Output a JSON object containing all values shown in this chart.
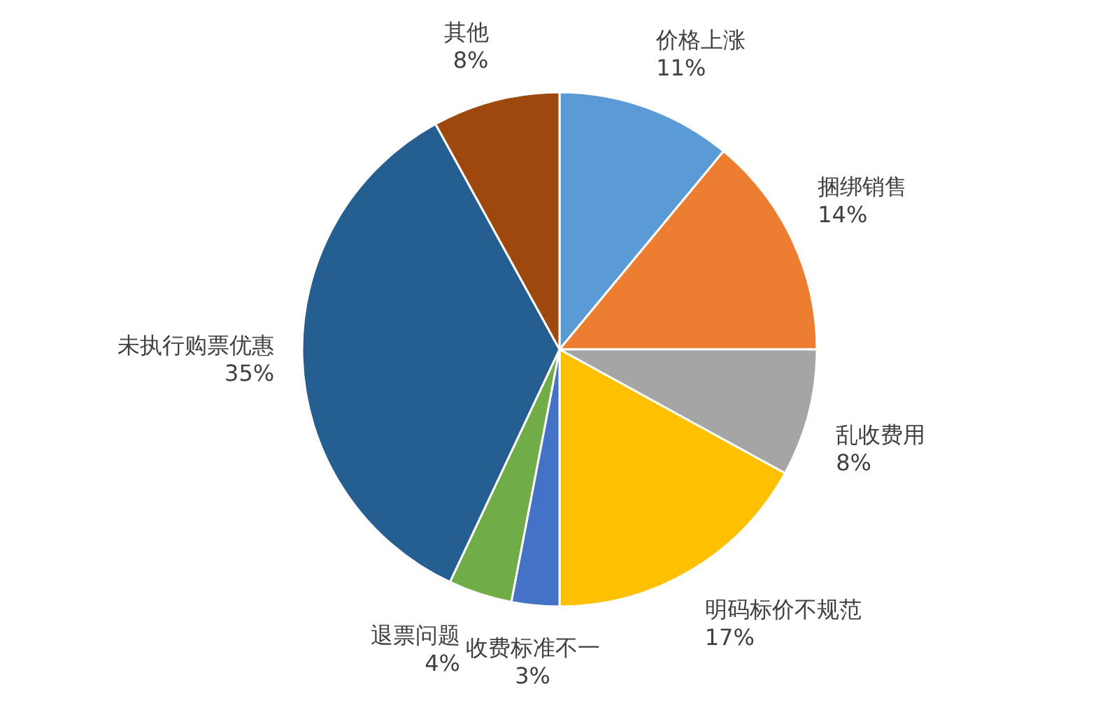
{
  "chart_data": {
    "type": "pie",
    "categories": [
      "价格上涨",
      "捆绑销售",
      "乱收费用",
      "明码标价不规范",
      "收费标准不一",
      "退票问题",
      "未执行购票优惠",
      "其他"
    ],
    "values": [
      11,
      14,
      8,
      17,
      3,
      4,
      35,
      8
    ],
    "value_labels": [
      "11%",
      "14%",
      "8%",
      "17%",
      "3%",
      "4%",
      "35%",
      "8%"
    ],
    "colors": [
      "#5b9bd5",
      "#ed7d31",
      "#a5a5a5",
      "#ffc000",
      "#4472c4",
      "#70ad47",
      "#255e91",
      "#9e480e"
    ]
  }
}
